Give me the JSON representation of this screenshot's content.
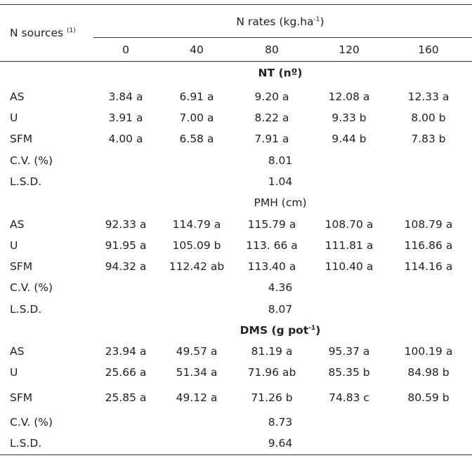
{
  "header": {
    "n_sources_label": "N sources",
    "n_sources_note": "(1)",
    "n_rates_label": "N rates (kg.ha",
    "n_rates_sup": "-1",
    "n_rates_close": ")",
    "rates": [
      "0",
      "40",
      "80",
      "120",
      "160"
    ]
  },
  "sections": [
    {
      "title": "NT (nº)",
      "title_sup": "",
      "title_close": "",
      "bold": true,
      "rows": [
        {
          "label": "AS",
          "values": [
            "3.84 a",
            "6.91 a",
            "9.20 a",
            "12.08 a",
            "12.33 a"
          ]
        },
        {
          "label": "U",
          "values": [
            "3.91 a",
            "7.00 a",
            "8.22 a",
            "9.33 b",
            "8.00 b"
          ]
        },
        {
          "label": "SFM",
          "values": [
            "4.00 a",
            "6.58 a",
            "7.91 a",
            "9.44 b",
            "7.83 b"
          ]
        }
      ],
      "cv_label": "C.V. (%)",
      "cv": "8.01",
      "lsd_label": "L.S.D.",
      "lsd": "1.04"
    },
    {
      "title": "PMH (cm)",
      "title_sup": "",
      "title_close": "",
      "bold": false,
      "rows": [
        {
          "label": "AS",
          "values": [
            "92.33 a",
            "114.79 a",
            "115.79 a",
            "108.70 a",
            "108.79 a"
          ]
        },
        {
          "label": "U",
          "values": [
            "91.95 a",
            "105.09 b",
            "113. 66 a",
            "111.81 a",
            "116.86 a"
          ]
        },
        {
          "label": "SFM",
          "values": [
            "94.32 a",
            "112.42 ab",
            "113.40 a",
            "110.40 a",
            "114.16 a"
          ]
        }
      ],
      "cv_label": "C.V. (%)",
      "cv": "4.36",
      "lsd_label": "L.S.D.",
      "lsd": "8.07"
    },
    {
      "title": "DMS (g pot",
      "title_sup": "-1",
      "title_close": ")",
      "bold": true,
      "rows": [
        {
          "label": "AS",
          "values": [
            "23.94 a",
            "49.57 a",
            "81.19 a",
            "95.37 a",
            "100.19 a"
          ]
        },
        {
          "label": "U",
          "values": [
            "25.66 a",
            "51.34 a",
            "71.96 ab",
            "85.35 b",
            "84.98 b"
          ]
        },
        {
          "label": "SFM",
          "values": [
            "25.85 a",
            "49.12 a",
            "71.26 b",
            "74.83 c",
            "80.59 b"
          ]
        }
      ],
      "cv_label": "C.V. (%)",
      "cv": "8.73",
      "lsd_label": "L.S.D.",
      "lsd": "9.64"
    }
  ]
}
